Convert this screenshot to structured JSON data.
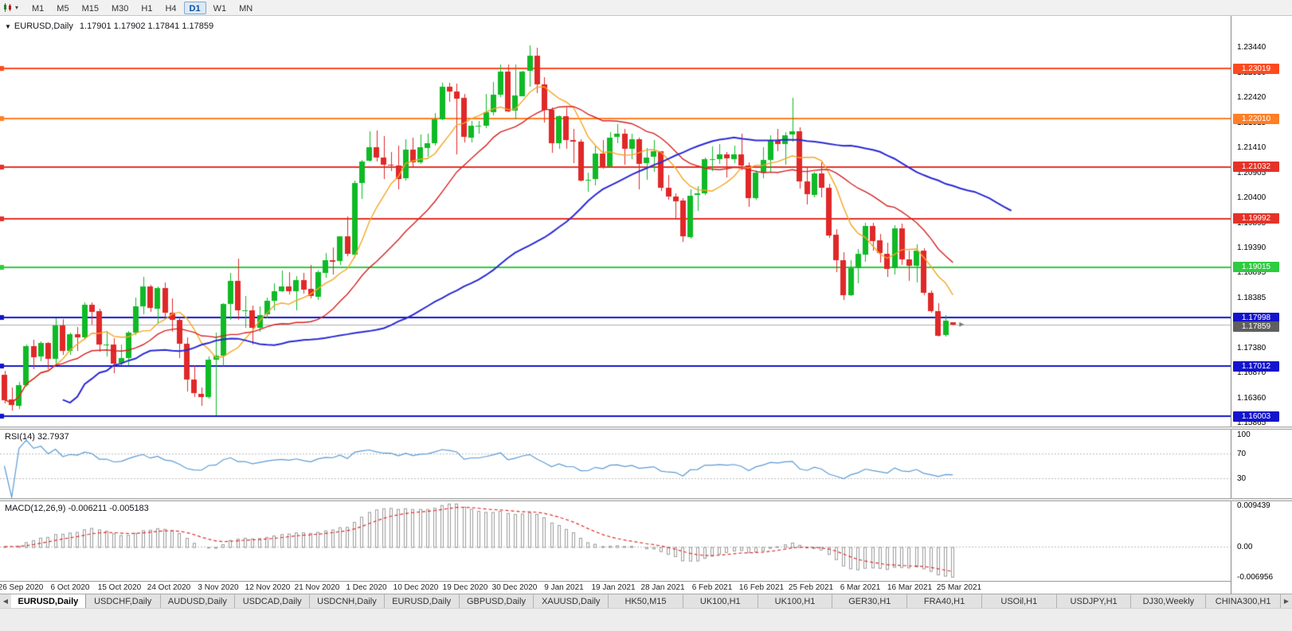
{
  "icons": {
    "collapse_triangle": "▼",
    "dropdown_caret": "▾",
    "scroll_left": "◀",
    "scroll_right": "▶"
  },
  "toolbar": {
    "timeframes": [
      "M1",
      "M5",
      "M15",
      "M30",
      "H1",
      "H4",
      "D1",
      "W1",
      "MN"
    ],
    "active_timeframe": "D1"
  },
  "main_chart": {
    "symbol_label": "EURUSD,Daily",
    "ohlc_text": "1.17901 1.17902 1.17841 1.17859"
  },
  "tabbar": {
    "active_index": 0,
    "items": [
      "EURUSD,Daily",
      "USDCHF,Daily",
      "AUDUSD,Daily",
      "USDCAD,Daily",
      "USDCNH,Daily",
      "EURUSD,Daily",
      "GBPUSD,Daily",
      "XAUUSD,Daily",
      "HK50,M15",
      "UK100,H1",
      "UK100,H1",
      "GER30,H1",
      "FRA40,H1",
      "USOil,H1",
      "USDJPY,H1",
      "DJ30,Weekly",
      "CHINA300,H1"
    ]
  },
  "chart_data": {
    "type": "candlestick",
    "symbol": "EURUSD",
    "timeframe": "Daily",
    "price_range": {
      "max": 1.2408,
      "min": 1.158
    },
    "colors": {
      "bull": "#0fba26",
      "bear": "#e02828",
      "wick_bull": "#0fba26",
      "wick_bear": "#e02828",
      "current_line": "#b0b0b0"
    },
    "y_axis_labels": [
      "1.23440",
      "1.22930",
      "1.22420",
      "1.21915",
      "1.21410",
      "1.20905",
      "1.20400",
      "1.19895",
      "1.19390",
      "1.18895",
      "1.18385",
      "1.17885",
      "1.17380",
      "1.16870",
      "1.16360",
      "1.15865"
    ],
    "x_labels": [
      "26 Sep 2020",
      "6 Oct 2020",
      "15 Oct 2020",
      "24 Oct 2020",
      "3 Nov 2020",
      "12 Nov 2020",
      "21 Nov 2020",
      "1 Dec 2020",
      "10 Dec 2020",
      "19 Dec 2020",
      "30 Dec 2020",
      "9 Jan 2021",
      "19 Jan 2021",
      "28 Jan 2021",
      "6 Feb 2021",
      "16 Feb 2021",
      "25 Feb 2021",
      "6 Mar 2021",
      "16 Mar 2021",
      "25 Mar 2021"
    ],
    "hlines": [
      {
        "price": 1.23019,
        "label": "1.23019",
        "color": "#ff4a1f",
        "width": 2
      },
      {
        "price": 1.2201,
        "label": "1.22010",
        "color": "#ff7f27",
        "width": 2
      },
      {
        "price": 1.21032,
        "label": "1.21032",
        "color": "#e53228",
        "width": 2
      },
      {
        "price": 1.19992,
        "label": "1.19992",
        "color": "#e53228",
        "width": 2
      },
      {
        "price": 1.19015,
        "label": "1.19015",
        "color": "#2ecc40",
        "width": 2
      },
      {
        "price": 1.17998,
        "label": "1.17998",
        "color": "#1414cc",
        "width": 2
      },
      {
        "price": 1.17012,
        "label": "1.17012",
        "color": "#1414cc",
        "width": 2
      },
      {
        "price": 1.16003,
        "label": "1.16003",
        "color": "#1414cc",
        "width": 2
      }
    ],
    "current_price": {
      "price": 1.17859,
      "label": "1.17859",
      "tag_color": "#5f5f5f"
    },
    "moving_averages": [
      {
        "name": "fast-ma",
        "period": 8,
        "color": "#f5a623",
        "width": 1.4,
        "shift": 0
      },
      {
        "name": "medium-ma",
        "period": 20,
        "color": "#d62222",
        "width": 1.4,
        "shift": 0
      },
      {
        "name": "slow-ma",
        "period": 45,
        "color": "#2a2ad4",
        "width": 2,
        "shift": 8
      }
    ],
    "rsi": {
      "label": "RSI(14) 32.7937",
      "period": 14,
      "value": 32.7937,
      "color": "#5b9bd5",
      "axis_labels": [
        100,
        70,
        30
      ],
      "dotted_levels": [
        70,
        30
      ]
    },
    "macd": {
      "label": "MACD(12,26,9) -0.006211 -0.005183",
      "fast": 12,
      "slow": 26,
      "signal": 9,
      "macd_value": -0.006211,
      "signal_value": -0.005183,
      "hist_color": "#9c9c9c",
      "signal_color": "#e03030",
      "axis": {
        "max": 0.009439,
        "mid_label": "0.00",
        "min": -0.006956,
        "max_label": "0.009439",
        "min_label": "-0.006956"
      }
    },
    "candles": [
      [
        1.1685,
        1.1692,
        1.1626,
        1.1634
      ],
      [
        1.1634,
        1.1658,
        1.1612,
        1.1622
      ],
      [
        1.1622,
        1.167,
        1.1615,
        1.1664
      ],
      [
        1.1664,
        1.1745,
        1.166,
        1.1742
      ],
      [
        1.1742,
        1.1755,
        1.1695,
        1.172
      ],
      [
        1.172,
        1.1752,
        1.1712,
        1.1748
      ],
      [
        1.1748,
        1.175,
        1.1695,
        1.1716
      ],
      [
        1.1716,
        1.1798,
        1.1705,
        1.1784
      ],
      [
        1.1784,
        1.1797,
        1.1725,
        1.1733
      ],
      [
        1.1733,
        1.177,
        1.1725,
        1.1766
      ],
      [
        1.1766,
        1.1781,
        1.1733,
        1.176
      ],
      [
        1.176,
        1.1831,
        1.1755,
        1.1826
      ],
      [
        1.1826,
        1.183,
        1.1785,
        1.1812
      ],
      [
        1.1812,
        1.1818,
        1.1731,
        1.1745
      ],
      [
        1.1745,
        1.1772,
        1.172,
        1.1746
      ],
      [
        1.1746,
        1.1758,
        1.1688,
        1.1708
      ],
      [
        1.1708,
        1.1746,
        1.1704,
        1.1718
      ],
      [
        1.1718,
        1.1772,
        1.1703,
        1.1769
      ],
      [
        1.1769,
        1.184,
        1.1765,
        1.1822
      ],
      [
        1.1822,
        1.1881,
        1.1806,
        1.1862
      ],
      [
        1.1862,
        1.1866,
        1.1811,
        1.1818
      ],
      [
        1.1818,
        1.1863,
        1.1787,
        1.186
      ],
      [
        1.186,
        1.187,
        1.18,
        1.181
      ],
      [
        1.181,
        1.1838,
        1.177,
        1.1795
      ],
      [
        1.1795,
        1.18,
        1.1718,
        1.1747
      ],
      [
        1.1747,
        1.1759,
        1.165,
        1.1674
      ],
      [
        1.1674,
        1.1704,
        1.164,
        1.1646
      ],
      [
        1.1646,
        1.1658,
        1.1621,
        1.164
      ],
      [
        1.164,
        1.1721,
        1.1636,
        1.1715
      ],
      [
        1.1715,
        1.177,
        1.1603,
        1.1723
      ],
      [
        1.1723,
        1.1829,
        1.1702,
        1.1827
      ],
      [
        1.1827,
        1.189,
        1.1795,
        1.1873
      ],
      [
        1.1873,
        1.1918,
        1.1795,
        1.1813
      ],
      [
        1.1813,
        1.1843,
        1.1779,
        1.1815
      ],
      [
        1.1815,
        1.1824,
        1.1745,
        1.1779
      ],
      [
        1.1779,
        1.1823,
        1.1772,
        1.1805
      ],
      [
        1.1805,
        1.184,
        1.1799,
        1.1833
      ],
      [
        1.1833,
        1.1869,
        1.1815,
        1.1852
      ],
      [
        1.1852,
        1.1894,
        1.185,
        1.1862
      ],
      [
        1.1862,
        1.1891,
        1.1846,
        1.1853
      ],
      [
        1.1853,
        1.1884,
        1.1815,
        1.1876
      ],
      [
        1.1876,
        1.189,
        1.1849,
        1.1857
      ],
      [
        1.1857,
        1.1906,
        1.1839,
        1.1842
      ],
      [
        1.1842,
        1.1895,
        1.1835,
        1.1891
      ],
      [
        1.1891,
        1.193,
        1.1881,
        1.1916
      ],
      [
        1.1916,
        1.1941,
        1.1886,
        1.1913
      ],
      [
        1.1913,
        1.1964,
        1.1907,
        1.1963
      ],
      [
        1.1963,
        1.2003,
        1.1923,
        1.1927
      ],
      [
        1.1927,
        1.2076,
        1.1921,
        1.2071
      ],
      [
        1.2071,
        1.2118,
        1.204,
        1.2115
      ],
      [
        1.2115,
        1.2175,
        1.2114,
        1.2143
      ],
      [
        1.2143,
        1.2177,
        1.2115,
        1.2122
      ],
      [
        1.2122,
        1.2166,
        1.2079,
        1.2108
      ],
      [
        1.2108,
        1.2134,
        1.2095,
        1.2107
      ],
      [
        1.2107,
        1.2146,
        1.2058,
        1.208
      ],
      [
        1.208,
        1.2159,
        1.2076,
        1.2138
      ],
      [
        1.2138,
        1.2163,
        1.2103,
        1.2112
      ],
      [
        1.2112,
        1.2169,
        1.211,
        1.2143
      ],
      [
        1.2143,
        1.217,
        1.2123,
        1.2152
      ],
      [
        1.2152,
        1.2212,
        1.2146,
        1.22
      ],
      [
        1.22,
        1.2273,
        1.2197,
        1.2265
      ],
      [
        1.2265,
        1.2273,
        1.2235,
        1.2256
      ],
      [
        1.2256,
        1.2272,
        1.2129,
        1.2242
      ],
      [
        1.2242,
        1.225,
        1.2152,
        1.2163
      ],
      [
        1.2163,
        1.2196,
        1.2153,
        1.2187
      ],
      [
        1.2187,
        1.2196,
        1.2171,
        1.2187
      ],
      [
        1.2187,
        1.225,
        1.2181,
        1.2214
      ],
      [
        1.2214,
        1.2275,
        1.2208,
        1.2249
      ],
      [
        1.2249,
        1.231,
        1.2245,
        1.2296
      ],
      [
        1.2296,
        1.231,
        1.2214,
        1.2216
      ],
      [
        1.2216,
        1.231,
        1.22,
        1.2247
      ],
      [
        1.2247,
        1.2297,
        1.2246,
        1.2296
      ],
      [
        1.2296,
        1.2349,
        1.2266,
        1.2327
      ],
      [
        1.2327,
        1.2344,
        1.2252,
        1.227
      ],
      [
        1.227,
        1.2285,
        1.2193,
        1.2219
      ],
      [
        1.2219,
        1.2223,
        1.2132,
        1.2152
      ],
      [
        1.2152,
        1.2208,
        1.214,
        1.2206
      ],
      [
        1.2206,
        1.2223,
        1.2139,
        1.2158
      ],
      [
        1.2158,
        1.218,
        1.2111,
        1.2155
      ],
      [
        1.2155,
        1.216,
        1.2075,
        1.2076
      ],
      [
        1.2076,
        1.2092,
        1.2054,
        1.2078
      ],
      [
        1.2078,
        1.2145,
        1.2066,
        1.213
      ],
      [
        1.213,
        1.2158,
        1.21,
        1.2105
      ],
      [
        1.2105,
        1.2173,
        1.2103,
        1.2163
      ],
      [
        1.2163,
        1.219,
        1.2151,
        1.217
      ],
      [
        1.217,
        1.218,
        1.2108,
        1.214
      ],
      [
        1.214,
        1.217,
        1.2118,
        1.216
      ],
      [
        1.216,
        1.2163,
        1.2059,
        1.2111
      ],
      [
        1.2111,
        1.2142,
        1.2078,
        1.2123
      ],
      [
        1.2123,
        1.2157,
        1.2093,
        1.2135
      ],
      [
        1.2135,
        1.2136,
        1.2056,
        1.2061
      ],
      [
        1.2061,
        1.2087,
        1.2038,
        1.2044
      ],
      [
        1.2044,
        1.205,
        1.1999,
        1.2035
      ],
      [
        1.2035,
        1.204,
        1.1952,
        1.1963
      ],
      [
        1.1963,
        1.2058,
        1.1958,
        1.2046
      ],
      [
        1.2046,
        1.2065,
        1.2016,
        1.205
      ],
      [
        1.205,
        1.2122,
        1.2047,
        1.2119
      ],
      [
        1.2119,
        1.2145,
        1.2095,
        1.2119
      ],
      [
        1.2119,
        1.2149,
        1.2109,
        1.2128
      ],
      [
        1.2128,
        1.2134,
        1.2082,
        1.212
      ],
      [
        1.212,
        1.2146,
        1.211,
        1.2129
      ],
      [
        1.2129,
        1.217,
        1.2096,
        1.2106
      ],
      [
        1.2106,
        1.2113,
        1.2023,
        1.204
      ],
      [
        1.204,
        1.2097,
        1.2037,
        1.2092
      ],
      [
        1.2092,
        1.2143,
        1.208,
        1.2118
      ],
      [
        1.2118,
        1.2167,
        1.2091,
        1.2158
      ],
      [
        1.2158,
        1.218,
        1.2135,
        1.215
      ],
      [
        1.215,
        1.2174,
        1.2109,
        1.2168
      ],
      [
        1.2168,
        1.2243,
        1.2155,
        1.2175
      ],
      [
        1.2175,
        1.2184,
        1.2061,
        1.2074
      ],
      [
        1.2074,
        1.2101,
        1.2027,
        1.2048
      ],
      [
        1.2048,
        1.2094,
        1.2043,
        1.2091
      ],
      [
        1.2091,
        1.2113,
        1.2043,
        1.2062
      ],
      [
        1.2062,
        1.2069,
        1.196,
        1.1966
      ],
      [
        1.1966,
        1.1978,
        1.1892,
        1.1915
      ],
      [
        1.1915,
        1.1932,
        1.1836,
        1.1845
      ],
      [
        1.1845,
        1.1915,
        1.1842,
        1.1899
      ],
      [
        1.1899,
        1.1938,
        1.1869,
        1.1928
      ],
      [
        1.1928,
        1.199,
        1.1912,
        1.1985
      ],
      [
        1.1985,
        1.199,
        1.1934,
        1.1955
      ],
      [
        1.1955,
        1.1968,
        1.1911,
        1.1929
      ],
      [
        1.1929,
        1.1951,
        1.1882,
        1.1899
      ],
      [
        1.1899,
        1.1986,
        1.1886,
        1.1979
      ],
      [
        1.1979,
        1.1989,
        1.1906,
        1.1917
      ],
      [
        1.1917,
        1.1935,
        1.1874,
        1.1904
      ],
      [
        1.1904,
        1.1948,
        1.1871,
        1.1935
      ],
      [
        1.1935,
        1.194,
        1.1845,
        1.185
      ],
      [
        1.185,
        1.1854,
        1.1809,
        1.1813
      ],
      [
        1.1813,
        1.1829,
        1.1761,
        1.1764
      ],
      [
        1.1764,
        1.1805,
        1.1762,
        1.1793
      ],
      [
        1.17901,
        1.17902,
        1.17841,
        1.17859
      ]
    ]
  }
}
